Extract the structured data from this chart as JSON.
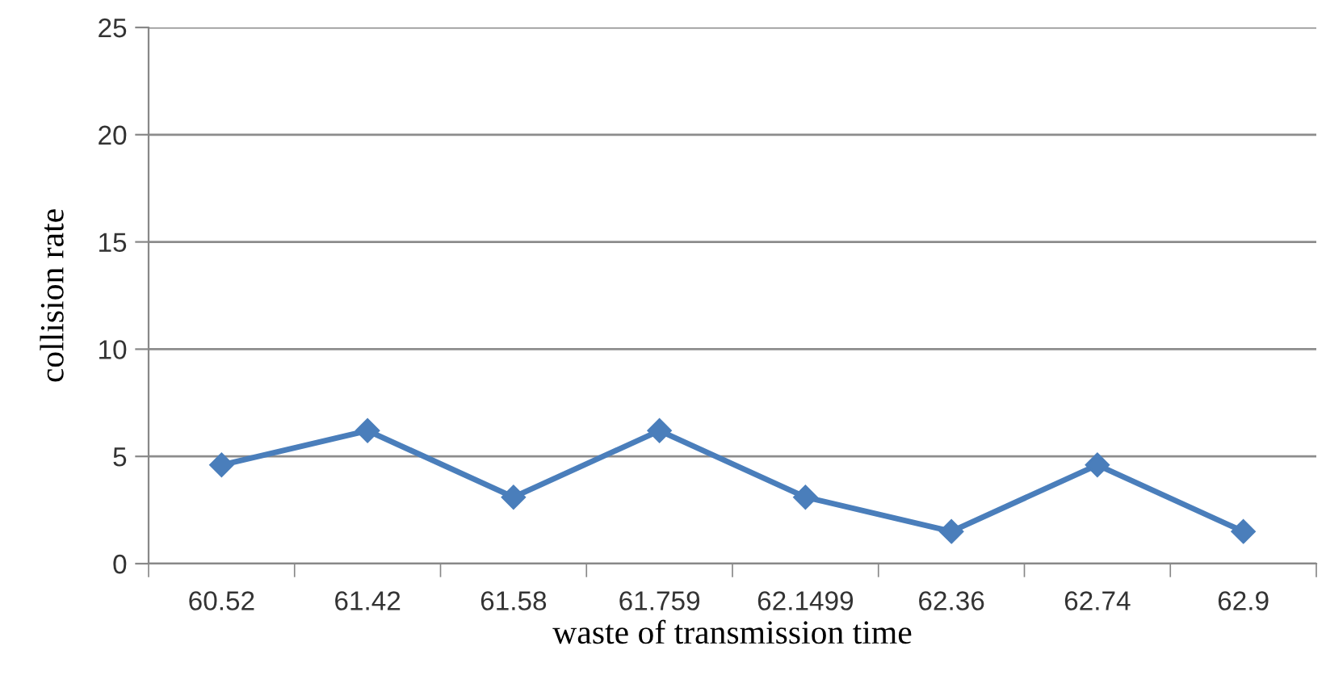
{
  "chart_data": {
    "type": "line",
    "xlabel": "waste of transmission time",
    "ylabel": "collision rate",
    "categories": [
      "60.52",
      "61.42",
      "61.58",
      "61.759",
      "62.1499",
      "62.36",
      "62.74",
      "62.9"
    ],
    "series": [
      {
        "color": "#4a7ebb",
        "values": [
          4.6,
          6.2,
          3.1,
          6.2,
          3.1,
          1.5,
          4.6,
          1.5
        ]
      }
    ],
    "ylim": [
      0,
      25
    ],
    "yticks": [
      0,
      5,
      10,
      15,
      20,
      25
    ],
    "grid": "y",
    "legend": false,
    "marker": "diamond",
    "line_style": "solid"
  }
}
